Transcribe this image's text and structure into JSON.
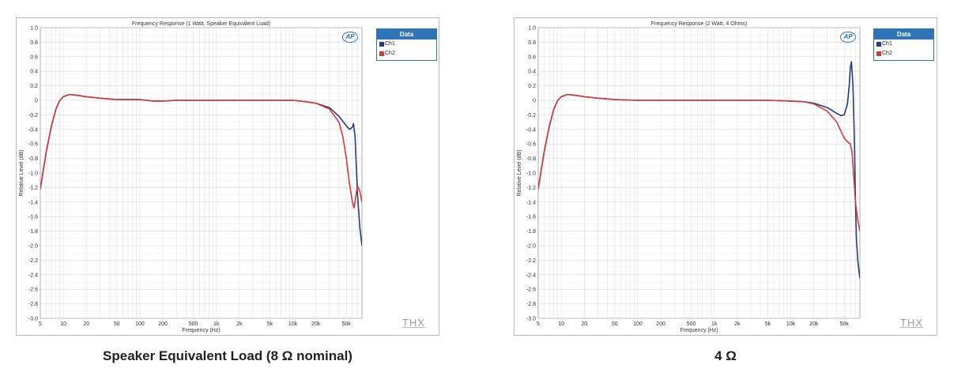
{
  "captions": {
    "left": "Speaker Equivalent Load (8 Ω nominal)",
    "right": "4 Ω"
  },
  "colors": {
    "ch1": "#1f3f80",
    "ch2": "#d43a3a",
    "legend_header": "#2f75b5",
    "grid": "#dcdcdc"
  },
  "icons": {
    "ap": "audio-precision-logo",
    "thx": "thx-logo"
  },
  "chart_data": [
    {
      "type": "line",
      "title": "Frequency Response (1 Watt, Speaker Equivalent Load)",
      "xlabel": "Frequency (Hz)",
      "ylabel": "Relative Level (dB)",
      "xscale": "log",
      "xlim": [
        5,
        80000
      ],
      "ylim": [
        -3.0,
        1.0
      ],
      "xticks": [
        5,
        10,
        20,
        50,
        100,
        200,
        500,
        1000,
        2000,
        5000,
        10000,
        20000,
        50000
      ],
      "xtick_labels": [
        "5",
        "10",
        "20",
        "50",
        "100",
        "200",
        "500",
        "1k",
        "2k",
        "5k",
        "10k",
        "20k",
        "50k"
      ],
      "yticks": [
        1.0,
        0.8,
        0.6,
        0.4,
        0.2,
        0,
        -0.2,
        -0.4,
        -0.6,
        -0.8,
        -1.0,
        -1.2,
        -1.4,
        -1.6,
        -1.8,
        -2.0,
        -2.2,
        -2.4,
        -2.6,
        -2.8,
        -3.0
      ],
      "ytick_labels": [
        "1.0",
        "0.8",
        "0.6",
        "0.4",
        "0.2",
        "0",
        "-0.2",
        "-0.4",
        "-0.6",
        "-0.8",
        "-1.0",
        "-1.2",
        "-1.4",
        "-1.6",
        "-1.8",
        "-2.0",
        "-2.2",
        "-2.4",
        "-2.6",
        "-2.8",
        "-3.0"
      ],
      "grid": true,
      "legend_title": "Data",
      "legend_position": "top-right",
      "series": [
        {
          "name": "Ch1",
          "x": [
            5,
            6,
            7,
            8,
            9,
            10,
            12,
            15,
            20,
            30,
            50,
            100,
            150,
            200,
            300,
            500,
            1000,
            2000,
            5000,
            10000,
            15000,
            20000,
            30000,
            40000,
            50000,
            55000,
            60000,
            62000,
            65000,
            70000,
            75000,
            80000
          ],
          "y": [
            -1.22,
            -0.7,
            -0.35,
            -0.12,
            0.0,
            0.05,
            0.08,
            0.07,
            0.05,
            0.03,
            0.01,
            0.01,
            -0.01,
            -0.01,
            0.0,
            0.0,
            0.0,
            0.0,
            0.0,
            0.0,
            -0.02,
            -0.04,
            -0.1,
            -0.22,
            -0.35,
            -0.4,
            -0.37,
            -0.32,
            -0.5,
            -1.3,
            -1.75,
            -2.0
          ]
        },
        {
          "name": "Ch2",
          "x": [
            5,
            6,
            7,
            8,
            9,
            10,
            12,
            15,
            20,
            30,
            50,
            100,
            150,
            200,
            300,
            500,
            1000,
            2000,
            5000,
            10000,
            15000,
            20000,
            30000,
            40000,
            45000,
            50000,
            55000,
            60000,
            63000,
            65000,
            68000,
            70000,
            75000,
            80000
          ],
          "y": [
            -1.22,
            -0.7,
            -0.35,
            -0.12,
            0.0,
            0.05,
            0.08,
            0.07,
            0.05,
            0.03,
            0.01,
            0.01,
            -0.01,
            -0.01,
            0.0,
            0.0,
            0.0,
            0.0,
            0.0,
            0.0,
            -0.02,
            -0.04,
            -0.12,
            -0.3,
            -0.5,
            -0.8,
            -1.15,
            -1.4,
            -1.48,
            -1.4,
            -1.25,
            -1.18,
            -1.25,
            -1.4
          ]
        }
      ]
    },
    {
      "type": "line",
      "title": "Frequency Response (2 Watt, 4 Ohms)",
      "xlabel": "Frequency (Hz)",
      "ylabel": "Relative Level (dB)",
      "xscale": "log",
      "xlim": [
        5,
        80000
      ],
      "ylim": [
        -3.0,
        1.0
      ],
      "xticks": [
        5,
        10,
        20,
        50,
        100,
        200,
        500,
        1000,
        2000,
        5000,
        10000,
        20000,
        50000
      ],
      "xtick_labels": [
        "5",
        "10",
        "20",
        "50",
        "100",
        "200",
        "500",
        "1k",
        "2k",
        "5k",
        "10k",
        "20k",
        "50k"
      ],
      "yticks": [
        1.0,
        0.8,
        0.6,
        0.4,
        0.2,
        0,
        -0.2,
        -0.4,
        -0.6,
        -0.8,
        -1.0,
        -1.2,
        -1.4,
        -1.6,
        -1.8,
        -2.0,
        -2.2,
        -2.4,
        -2.6,
        -2.8,
        -3.0
      ],
      "ytick_labels": [
        "1.0",
        "0.8",
        "0.6",
        "0.4",
        "0.2",
        "0",
        "-0.2",
        "-0.4",
        "-0.6",
        "-0.8",
        "-1.0",
        "-1.2",
        "-1.4",
        "-1.6",
        "-1.8",
        "-2.0",
        "-2.2",
        "-2.4",
        "-2.6",
        "-2.8",
        "-3.0"
      ],
      "grid": true,
      "legend_title": "Data",
      "legend_position": "top-right",
      "series": [
        {
          "name": "Ch1",
          "x": [
            5,
            6,
            7,
            8,
            9,
            10,
            12,
            15,
            20,
            30,
            50,
            100,
            200,
            500,
            1000,
            2000,
            5000,
            10000,
            15000,
            20000,
            30000,
            40000,
            45000,
            50000,
            55000,
            58000,
            60000,
            62000,
            65000,
            68000,
            70000,
            72000,
            75000,
            80000
          ],
          "y": [
            -1.22,
            -0.7,
            -0.35,
            -0.12,
            0.0,
            0.05,
            0.08,
            0.07,
            0.05,
            0.03,
            0.01,
            0.0,
            0.0,
            0.0,
            0.0,
            0.0,
            0.0,
            -0.01,
            -0.02,
            -0.04,
            -0.1,
            -0.18,
            -0.21,
            -0.2,
            -0.05,
            0.2,
            0.45,
            0.53,
            0.2,
            -0.6,
            -1.4,
            -1.9,
            -2.2,
            -2.45
          ]
        },
        {
          "name": "Ch2",
          "x": [
            5,
            6,
            7,
            8,
            9,
            10,
            12,
            15,
            20,
            30,
            50,
            100,
            200,
            500,
            1000,
            2000,
            5000,
            10000,
            15000,
            20000,
            30000,
            40000,
            45000,
            50000,
            55000,
            60000,
            63000,
            65000,
            68000,
            70000,
            75000,
            80000
          ],
          "y": [
            -1.22,
            -0.7,
            -0.35,
            -0.12,
            0.0,
            0.05,
            0.08,
            0.07,
            0.05,
            0.03,
            0.01,
            0.0,
            0.0,
            0.0,
            0.0,
            0.0,
            0.0,
            -0.01,
            -0.02,
            -0.05,
            -0.15,
            -0.3,
            -0.42,
            -0.52,
            -0.57,
            -0.6,
            -0.7,
            -0.9,
            -1.2,
            -1.4,
            -1.65,
            -1.8
          ]
        }
      ]
    }
  ]
}
